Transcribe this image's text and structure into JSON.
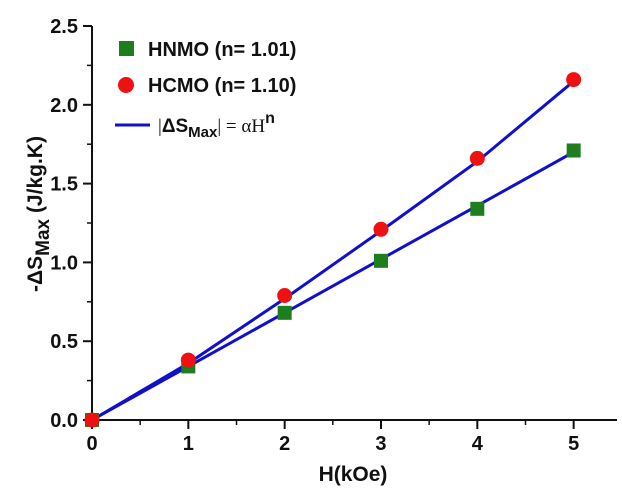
{
  "chart_data": {
    "type": "scatter",
    "xlabel": "H(kOe)",
    "ylabel": "-ΔS",
    "ylabel_sub": "Max",
    "ylabel_unit": " (J/kg.K)",
    "xlim": [
      0,
      5.45
    ],
    "ylim": [
      0,
      2.5
    ],
    "xticks": [
      "0",
      "1",
      "2",
      "3",
      "4",
      "5"
    ],
    "yticks": [
      "0.0",
      "0.5",
      "1.0",
      "1.5",
      "2.0",
      "2.5"
    ],
    "grid": false,
    "legend_position": "top-left",
    "series": [
      {
        "name": "HNMO (n= 1.01)",
        "marker": "square",
        "color": "#1e7d1e",
        "x": [
          0,
          1,
          2,
          3,
          4,
          5
        ],
        "y": [
          0.0,
          0.34,
          0.68,
          1.01,
          1.34,
          1.71
        ]
      },
      {
        "name": "HCMO (n= 1.10)",
        "marker": "circle",
        "color": "#ee1111",
        "x": [
          0,
          1,
          2,
          3,
          4,
          5
        ],
        "y": [
          0.0,
          0.38,
          0.79,
          1.21,
          1.66,
          2.16
        ]
      }
    ],
    "fits": [
      {
        "color": "#1010cc",
        "x": [
          0,
          1,
          2,
          3,
          4,
          5
        ],
        "y": [
          0.0,
          0.34,
          0.68,
          1.02,
          1.36,
          1.7
        ]
      },
      {
        "color": "#1010cc",
        "x": [
          0,
          1,
          2,
          3,
          4,
          5
        ],
        "y": [
          0.0,
          0.36,
          0.77,
          1.2,
          1.64,
          2.15
        ]
      }
    ],
    "fit_legend": {
      "bar1": "|",
      "delta_s": "ΔS",
      "sub": "Max",
      "bar2": "|",
      "rhs": " = αH",
      "exp": "n"
    }
  }
}
